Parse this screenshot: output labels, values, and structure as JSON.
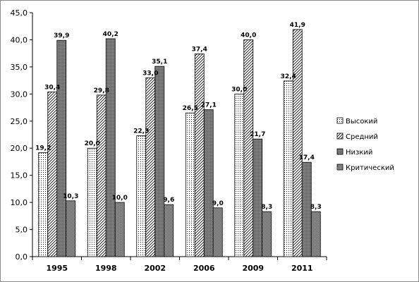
{
  "chart_data": {
    "type": "bar",
    "categories": [
      "1995",
      "1998",
      "2002",
      "2006",
      "2009",
      "2011"
    ],
    "series": [
      {
        "name": "Высокий",
        "values": [
          19.2,
          20.0,
          22.3,
          26.5,
          30.0,
          32.4
        ],
        "labels": [
          "19,2",
          "20,0",
          "22,3",
          "26,5",
          "30,0",
          "32,4"
        ],
        "pattern": "dots"
      },
      {
        "name": "Средний",
        "values": [
          30.4,
          29.8,
          33.0,
          37.4,
          40.0,
          41.9
        ],
        "labels": [
          "30,4",
          "29,8",
          "33,0",
          "37,4",
          "40,0",
          "41,9"
        ],
        "pattern": "diagonal"
      },
      {
        "name": "Низкий",
        "values": [
          39.9,
          40.2,
          35.1,
          27.1,
          21.7,
          17.4
        ],
        "labels": [
          "39,9",
          "40,2",
          "35,1",
          "27,1",
          "21,7",
          "17,4"
        ],
        "pattern": "gray"
      },
      {
        "name": "Критический",
        "values": [
          10.3,
          10.0,
          9.6,
          9.0,
          8.3,
          8.3
        ],
        "labels": [
          "10,3",
          "10,0",
          "9,6",
          "9,0",
          "8,3",
          "8,3"
        ],
        "pattern": "checker"
      }
    ],
    "ylim": [
      0,
      45
    ],
    "yticks": [
      "0,0",
      "5,0",
      "10,0",
      "15,0",
      "20,0",
      "25,0",
      "30,0",
      "35,0",
      "40,0",
      "45,0"
    ],
    "title": "",
    "xlabel": "",
    "ylabel": "",
    "legend_position": "right",
    "grid": false
  }
}
